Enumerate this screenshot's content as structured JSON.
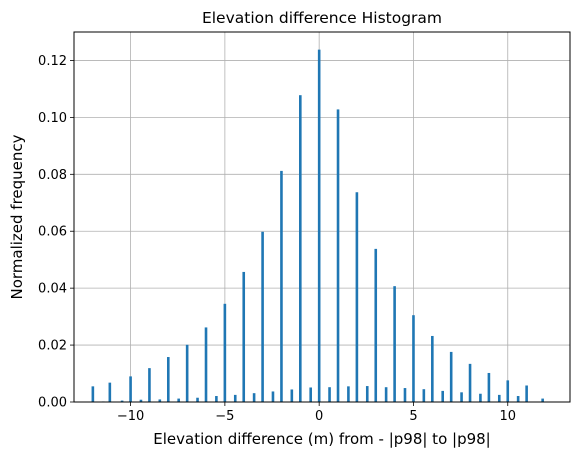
{
  "chart_data": {
    "type": "bar",
    "title": "Elevation difference Histogram",
    "xlabel": "Elevation difference (m) from - |p98| to |p98|",
    "ylabel": "Normalized frequency",
    "xlim": [
      -13.0,
      13.3
    ],
    "ylim": [
      0,
      0.13
    ],
    "xticks": [
      -10,
      -5,
      0,
      5,
      10
    ],
    "xtick_labels": [
      "−10",
      "−5",
      "0",
      "5",
      "10"
    ],
    "yticks": [
      0.0,
      0.02,
      0.04,
      0.06,
      0.08,
      0.1,
      0.12
    ],
    "ytick_labels": [
      "0.00",
      "0.02",
      "0.04",
      "0.06",
      "0.08",
      "0.10",
      "0.12"
    ],
    "grid": true,
    "color": "#1f77b4",
    "bars": [
      {
        "x": -12.0,
        "y": 0.0055
      },
      {
        "x": -11.45,
        "y": 0.0002
      },
      {
        "x": -11.1,
        "y": 0.0068
      },
      {
        "x": -10.45,
        "y": 0.0005
      },
      {
        "x": -10.0,
        "y": 0.009
      },
      {
        "x": -9.45,
        "y": 0.0008
      },
      {
        "x": -9.0,
        "y": 0.0119
      },
      {
        "x": -8.45,
        "y": 0.0009
      },
      {
        "x": -8.0,
        "y": 0.0158
      },
      {
        "x": -7.45,
        "y": 0.0012
      },
      {
        "x": -7.0,
        "y": 0.0201
      },
      {
        "x": -6.45,
        "y": 0.0015
      },
      {
        "x": -6.0,
        "y": 0.0262
      },
      {
        "x": -5.45,
        "y": 0.0021
      },
      {
        "x": -5.0,
        "y": 0.0345
      },
      {
        "x": -4.45,
        "y": 0.0025
      },
      {
        "x": -4.0,
        "y": 0.0457
      },
      {
        "x": -3.45,
        "y": 0.0031
      },
      {
        "x": -3.0,
        "y": 0.0598
      },
      {
        "x": -2.45,
        "y": 0.0037
      },
      {
        "x": -2.0,
        "y": 0.0812
      },
      {
        "x": -1.45,
        "y": 0.0044
      },
      {
        "x": -1.0,
        "y": 0.1078
      },
      {
        "x": -0.45,
        "y": 0.0051
      },
      {
        "x": 0.0,
        "y": 0.1238
      },
      {
        "x": 0.55,
        "y": 0.0052
      },
      {
        "x": 1.0,
        "y": 0.1028
      },
      {
        "x": 1.55,
        "y": 0.0055
      },
      {
        "x": 2.0,
        "y": 0.0737
      },
      {
        "x": 2.55,
        "y": 0.0056
      },
      {
        "x": 3.0,
        "y": 0.0538
      },
      {
        "x": 3.55,
        "y": 0.0052
      },
      {
        "x": 4.0,
        "y": 0.0407
      },
      {
        "x": 4.55,
        "y": 0.0049
      },
      {
        "x": 5.0,
        "y": 0.0305
      },
      {
        "x": 5.55,
        "y": 0.0045
      },
      {
        "x": 6.0,
        "y": 0.0232
      },
      {
        "x": 6.55,
        "y": 0.0039
      },
      {
        "x": 7.0,
        "y": 0.0176
      },
      {
        "x": 7.55,
        "y": 0.0034
      },
      {
        "x": 8.0,
        "y": 0.0134
      },
      {
        "x": 8.55,
        "y": 0.0029
      },
      {
        "x": 9.0,
        "y": 0.0102
      },
      {
        "x": 9.55,
        "y": 0.0025
      },
      {
        "x": 10.0,
        "y": 0.0076
      },
      {
        "x": 10.55,
        "y": 0.0021
      },
      {
        "x": 11.0,
        "y": 0.0058
      },
      {
        "x": 11.85,
        "y": 0.0012
      }
    ]
  }
}
